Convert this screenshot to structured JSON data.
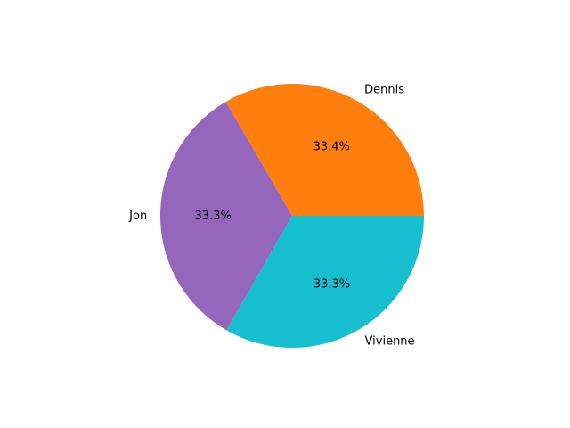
{
  "chart_data": {
    "type": "pie",
    "categories": [
      "Dennis",
      "Jon",
      "Vivienne"
    ],
    "values": [
      33.4,
      33.3,
      33.3
    ],
    "value_labels": [
      "33.4%",
      "33.3%",
      "33.3%"
    ],
    "colors": [
      "#ff7f0e",
      "#9467bd",
      "#17becf"
    ],
    "start_angle_deg": 0,
    "direction": "counterclockwise",
    "legend": "none",
    "grid": false
  }
}
